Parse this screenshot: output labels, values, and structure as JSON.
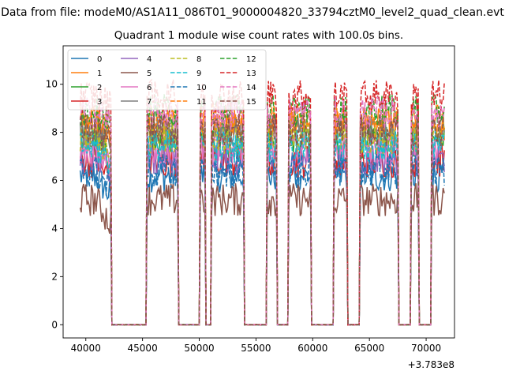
{
  "chart_data": {
    "type": "line",
    "suptitle": "Data from file: modeM0/AS1A11_086T01_9000004820_33794cztM0_level2_quad_clean.evt",
    "title": "Quadrant 1 module wise count rates with 100.0s bins.",
    "xlabel": "",
    "ylabel": "",
    "x_offset_label": "+3.783e8",
    "xlim": [
      38000,
      72500
    ],
    "ylim": [
      -0.55,
      11.6
    ],
    "x_ticks": [
      40000,
      45000,
      50000,
      55000,
      60000,
      65000,
      70000
    ],
    "x_tick_labels": [
      "40000",
      "45000",
      "50000",
      "55000",
      "60000",
      "65000",
      "70000"
    ],
    "y_ticks": [
      0,
      2,
      4,
      6,
      8,
      10
    ],
    "y_tick_labels": [
      "0",
      "2",
      "4",
      "6",
      "8",
      "10"
    ],
    "grid": false,
    "legend_position": "top-left",
    "legend_columns": 4,
    "bin_size": 100,
    "on_segments": [
      [
        39500,
        42200
      ],
      [
        45400,
        48100
      ],
      [
        50100,
        50500
      ],
      [
        51100,
        53900
      ],
      [
        56000,
        56800
      ],
      [
        57900,
        59800
      ],
      [
        61900,
        63000
      ],
      [
        64200,
        67500
      ],
      [
        68700,
        69300
      ],
      [
        70500,
        71600
      ]
    ],
    "series": [
      {
        "name": "0",
        "level": 6.2,
        "color": "#1f77b4",
        "dash": "solid"
      },
      {
        "name": "1",
        "level": 8.3,
        "color": "#ff7f0e",
        "dash": "solid"
      },
      {
        "name": "2",
        "level": 7.6,
        "color": "#2ca02c",
        "dash": "solid"
      },
      {
        "name": "3",
        "level": 6.8,
        "color": "#d62728",
        "dash": "solid"
      },
      {
        "name": "4",
        "level": 6.9,
        "color": "#9467bd",
        "dash": "solid"
      },
      {
        "name": "5",
        "level": 5.2,
        "color": "#8c564b",
        "dash": "solid"
      },
      {
        "name": "6",
        "level": 7.3,
        "color": "#e377c2",
        "dash": "solid"
      },
      {
        "name": "7",
        "level": 8.0,
        "color": "#7f7f7f",
        "dash": "solid"
      },
      {
        "name": "8",
        "level": 7.8,
        "color": "#bcbd22",
        "dash": "dashed"
      },
      {
        "name": "9",
        "level": 7.4,
        "color": "#17becf",
        "dash": "dashed"
      },
      {
        "name": "10",
        "level": 6.4,
        "color": "#1f77b4",
        "dash": "dashed"
      },
      {
        "name": "11",
        "level": 8.6,
        "color": "#ff7f0e",
        "dash": "dashed"
      },
      {
        "name": "12",
        "level": 8.9,
        "color": "#2ca02c",
        "dash": "dashed"
      },
      {
        "name": "13",
        "level": 9.5,
        "color": "#d62728",
        "dash": "dashed"
      },
      {
        "name": "14",
        "level": 8.8,
        "color": "#e377c2",
        "dash": "dashed"
      },
      {
        "name": "15",
        "level": 8.1,
        "color": "#8c564b",
        "dash": "dashed"
      }
    ]
  }
}
